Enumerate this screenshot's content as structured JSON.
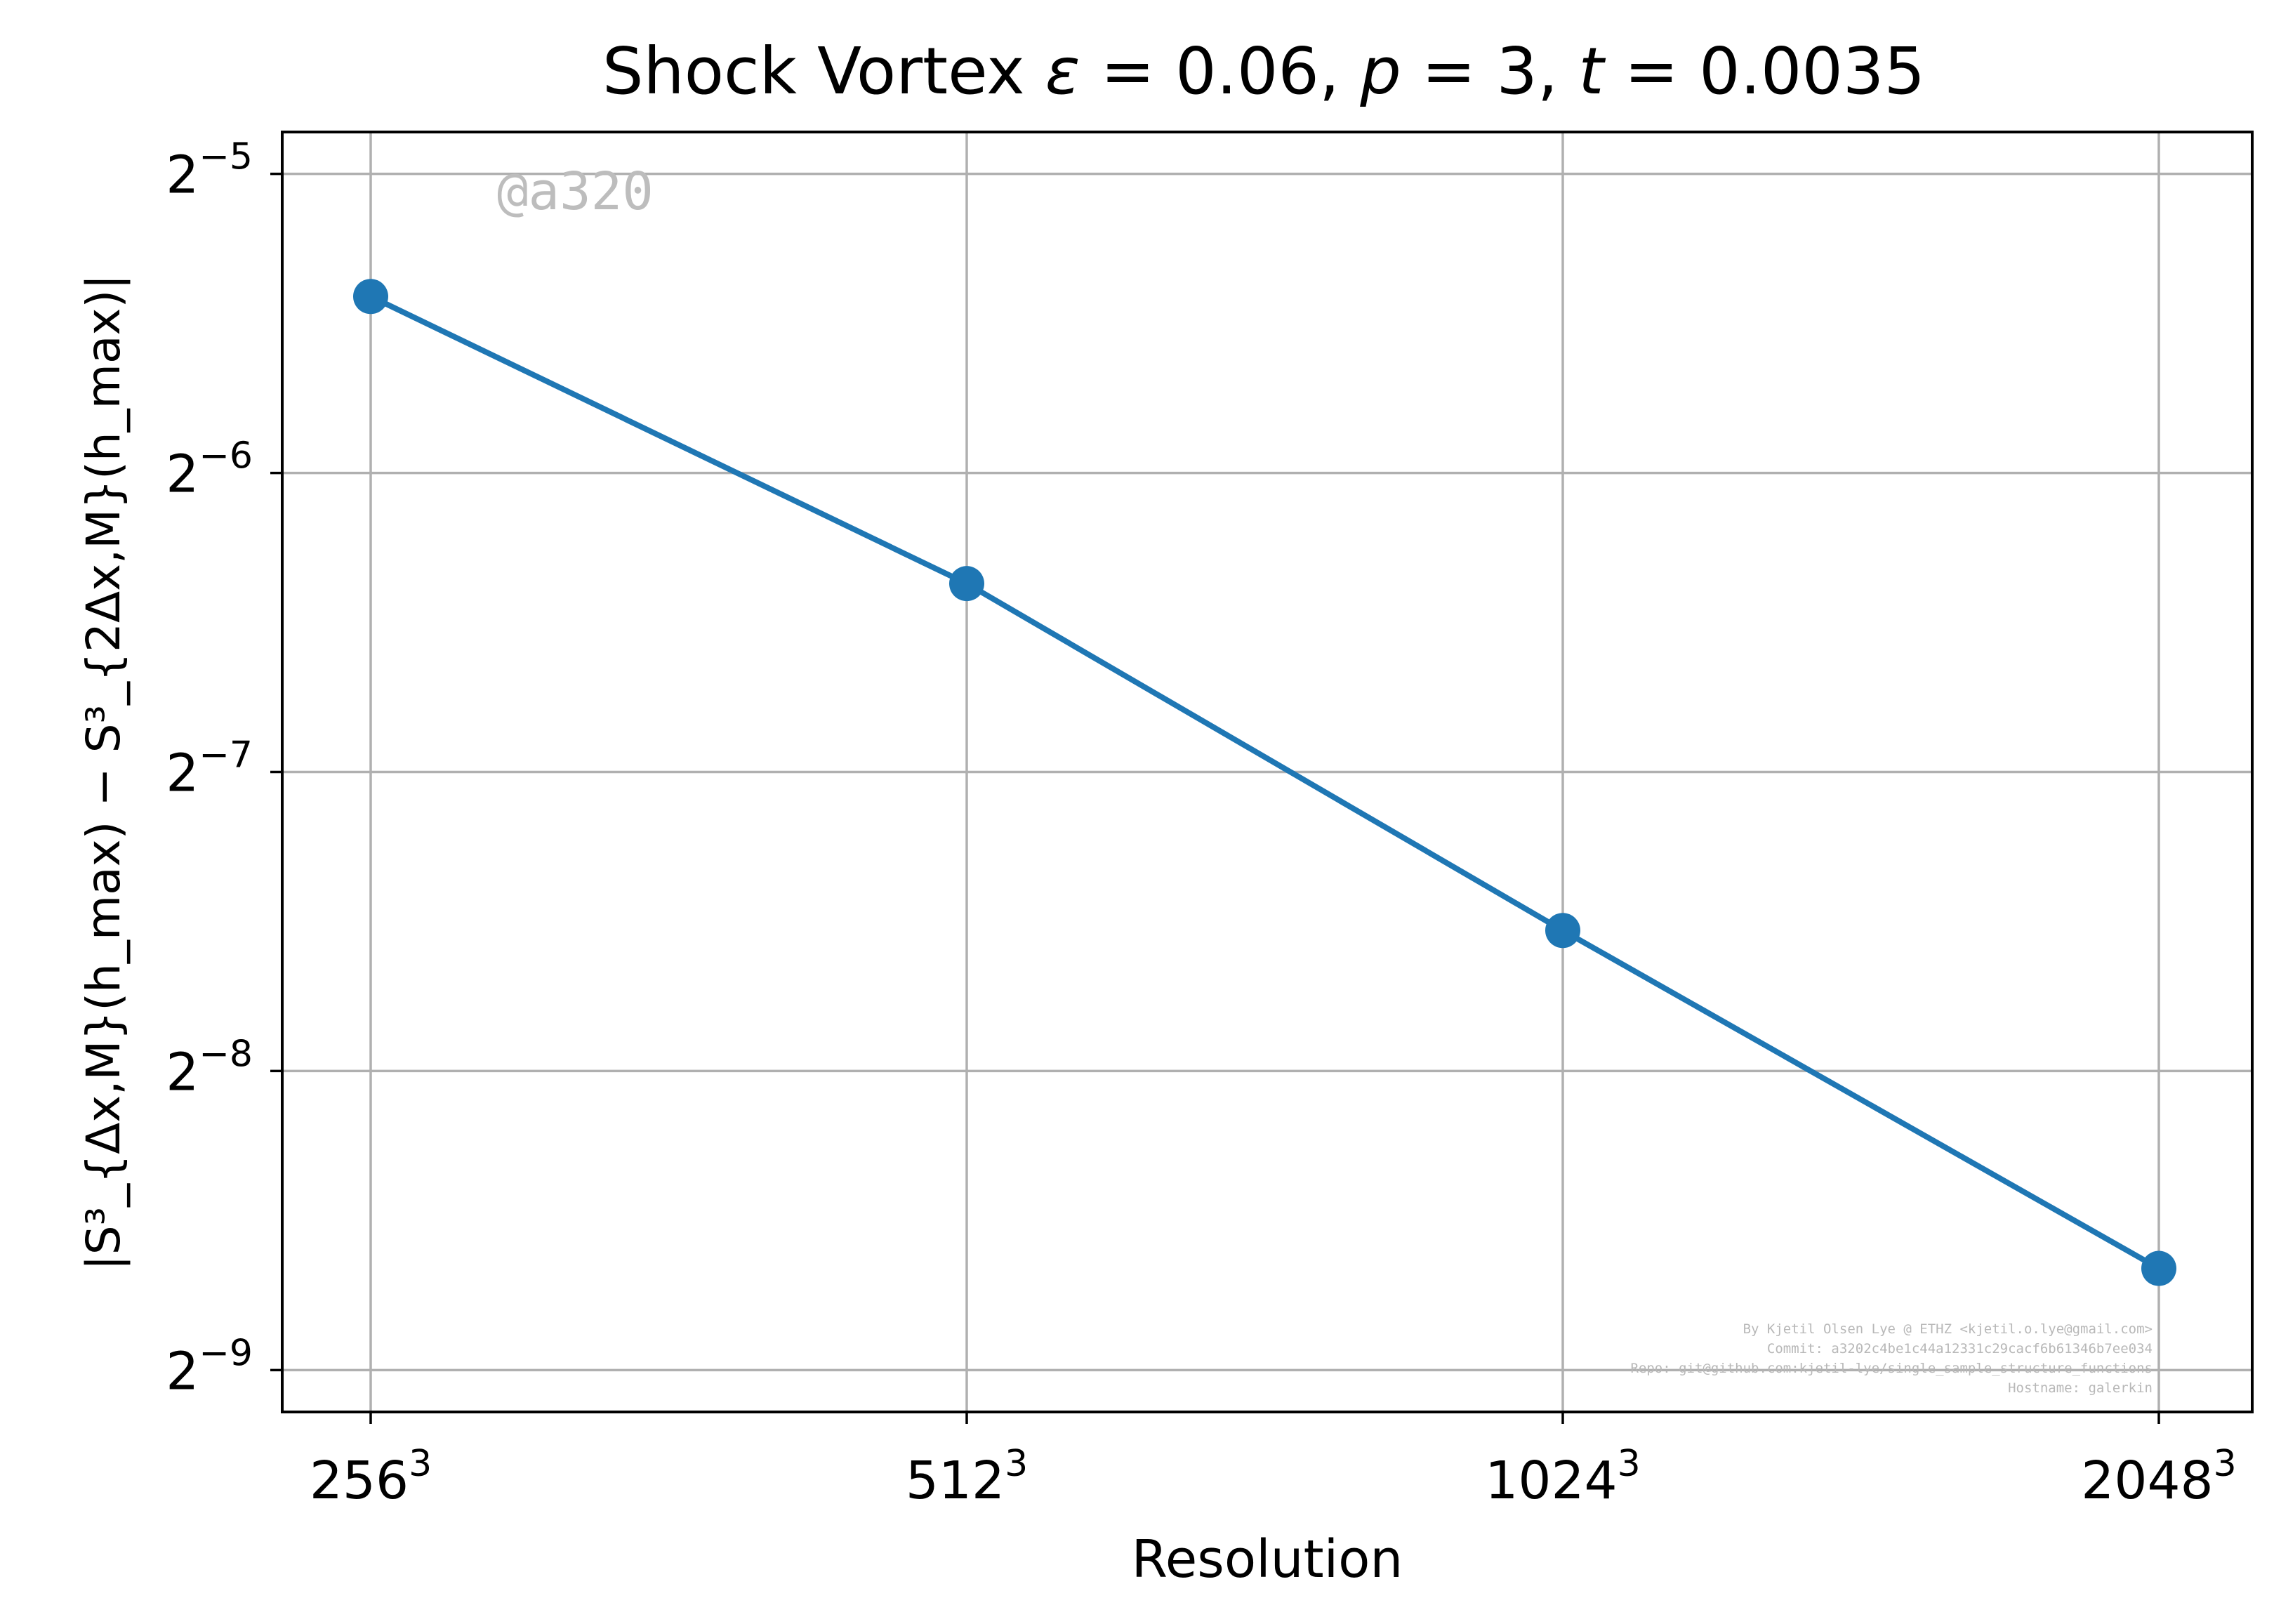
{
  "chart_data": {
    "type": "line",
    "title_text": "Shock Vortex ",
    "title_math": [
      {
        "text": "ε",
        "italic": true
      },
      {
        "text": " = 0.06, ",
        "italic": false
      },
      {
        "text": "p",
        "italic": true
      },
      {
        "text": " = 3, ",
        "italic": false
      },
      {
        "text": "t",
        "italic": true
      },
      {
        "text": " = 0.0035",
        "italic": false
      }
    ],
    "xlabel": "Resolution",
    "ylabel": "|S³_{Δx,M}(h_max) − S³_{2Δx,M}(h_max)|",
    "categories": [
      "256³",
      "512³",
      "1024³",
      "2048³"
    ],
    "x_tick_bases": [
      "256",
      "512",
      "1024",
      "2048"
    ],
    "x_tick_exp": "3",
    "x": [
      256,
      512,
      1024,
      2048
    ],
    "y_scale": "log2",
    "y_ticks_exp": [
      -5,
      -6,
      -7,
      -8,
      -9
    ],
    "y_tick_base": "2",
    "y_range_log2": [
      -9.14,
      -4.86
    ],
    "series": [
      {
        "name": "",
        "color": "#1f77b4",
        "marker": "circle",
        "y_log2": [
          -5.41,
          -6.37,
          -7.53,
          -8.66
        ]
      }
    ],
    "grid": true,
    "annotations": {
      "watermark": "@a320",
      "credits": [
        "By Kjetil Olsen Lye @ ETHZ <kjetil.o.lye@gmail.com>",
        "Commit: a3202c4be1c44a12331c29cacf6b61346b7ee034",
        "Repo: git@github.com:kjetil-lye/single_sample_structure_functions",
        "Hostname: galerkin"
      ]
    }
  }
}
